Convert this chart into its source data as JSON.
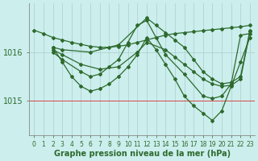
{
  "xlabel": "Graphe pression niveau de la mer (hPa)",
  "background_color": "#cceeed",
  "plot_bg_color": "#cceeed",
  "grid_color": "#aacece",
  "line_color": "#2d6a2d",
  "xlim": [
    -0.5,
    23.5
  ],
  "ylim": [
    1014.3,
    1017.0
  ],
  "yticks": [
    1015,
    1016
  ],
  "xticks": [
    0,
    1,
    2,
    3,
    4,
    5,
    6,
    7,
    8,
    9,
    10,
    11,
    12,
    13,
    14,
    15,
    16,
    17,
    18,
    19,
    20,
    21,
    22,
    23
  ],
  "series": [
    {
      "x": [
        0,
        1,
        2,
        3,
        4,
        5,
        6,
        7,
        8,
        9,
        10,
        11,
        12,
        13,
        14,
        15,
        16,
        17,
        18,
        19,
        20,
        21,
        22,
        23
      ],
      "y": [
        1016.45,
        1016.38,
        1016.3,
        1016.25,
        1016.2,
        1016.16,
        1016.12,
        1016.1,
        1016.1,
        1016.12,
        1016.15,
        1016.2,
        1016.25,
        1016.3,
        1016.35,
        1016.38,
        1016.4,
        1016.42,
        1016.44,
        1016.46,
        1016.48,
        1016.5,
        1016.52,
        1016.55
      ]
    },
    {
      "x": [
        2,
        3,
        6,
        9,
        12,
        13,
        14,
        15,
        16,
        17,
        18,
        19,
        20,
        21,
        22,
        23
      ],
      "y": [
        1016.1,
        1016.05,
        1016.0,
        1016.15,
        1016.7,
        1016.55,
        1016.4,
        1016.25,
        1016.1,
        1015.85,
        1015.6,
        1015.45,
        1015.35,
        1015.38,
        1015.5,
        1016.45
      ]
    },
    {
      "x": [
        2,
        3,
        5,
        7,
        9,
        11,
        12,
        14,
        15,
        16,
        17,
        18,
        19,
        20,
        21,
        22,
        23
      ],
      "y": [
        1016.05,
        1015.95,
        1015.75,
        1015.65,
        1015.7,
        1016.0,
        1016.2,
        1016.05,
        1015.9,
        1015.75,
        1015.6,
        1015.45,
        1015.35,
        1015.3,
        1015.32,
        1015.45,
        1016.42
      ]
    },
    {
      "x": [
        2,
        3,
        5,
        6,
        7,
        8,
        9,
        10,
        11,
        12,
        14,
        16,
        18,
        19,
        20,
        21,
        22,
        23
      ],
      "y": [
        1016.0,
        1015.85,
        1015.6,
        1015.5,
        1015.55,
        1015.7,
        1015.85,
        1016.2,
        1016.55,
        1016.65,
        1015.95,
        1015.55,
        1015.1,
        1015.05,
        1015.1,
        1015.35,
        1016.35,
        1016.38
      ]
    },
    {
      "x": [
        2,
        3,
        4,
        5,
        6,
        7,
        8,
        9,
        10,
        11,
        12,
        13,
        14,
        15,
        16,
        17,
        18,
        19,
        20,
        21,
        22,
        23
      ],
      "y": [
        1016.1,
        1015.8,
        1015.5,
        1015.3,
        1015.2,
        1015.25,
        1015.35,
        1015.5,
        1015.7,
        1015.95,
        1016.3,
        1016.05,
        1015.75,
        1015.45,
        1015.1,
        1014.9,
        1014.75,
        1014.6,
        1014.8,
        1015.3,
        1015.8,
        1016.3
      ]
    }
  ],
  "redline_y": 1015.0,
  "marker": "D",
  "markersize": 2.0,
  "linewidth": 0.9,
  "fontsize_xlabel": 7,
  "fontsize_yticks": 7,
  "fontsize_xticks": 5.5
}
